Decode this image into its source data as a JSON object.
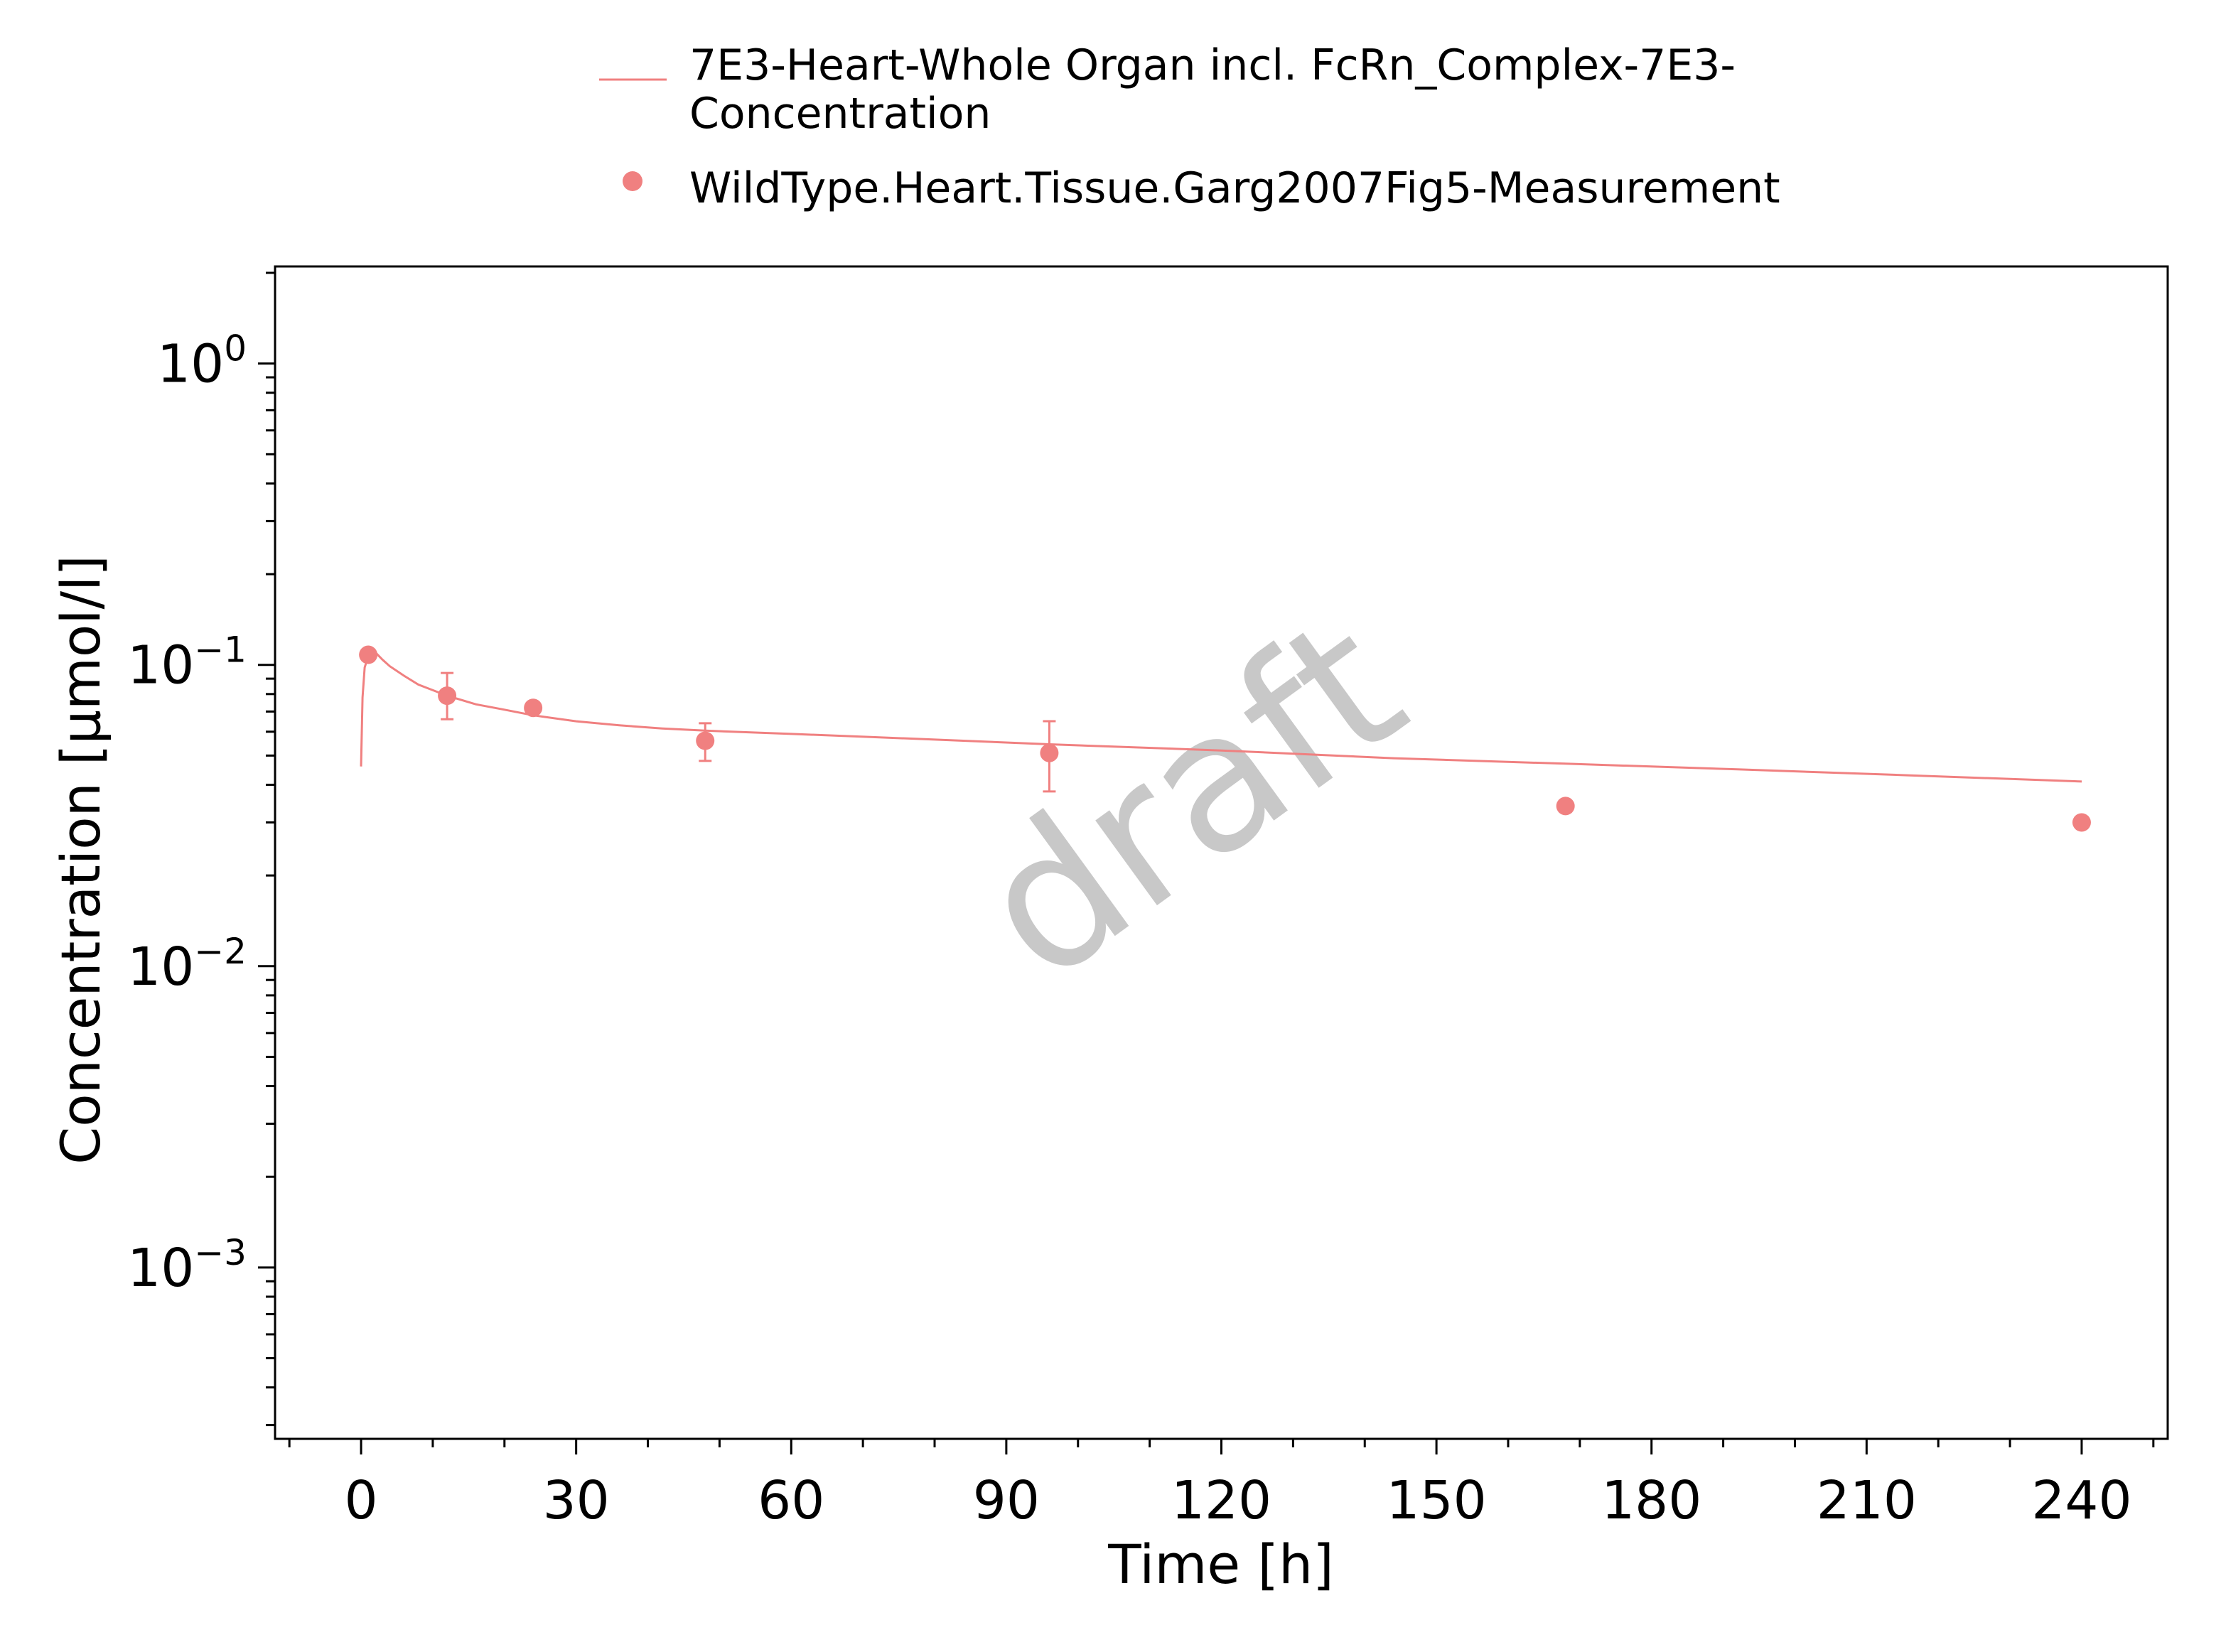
{
  "chart_data": {
    "type": "line",
    "xlabel": "Time [h]",
    "ylabel": "Concentration [µmol/l]",
    "xlim": [
      -12,
      252
    ],
    "ylim": [
      0.00027,
      2.1
    ],
    "y_scale": "log",
    "x_ticks": [
      0,
      30,
      60,
      90,
      120,
      150,
      180,
      210,
      240
    ],
    "x_tick_labels": [
      "0",
      "30",
      "60",
      "90",
      "120",
      "150",
      "180",
      "210",
      "240"
    ],
    "y_ticks": [
      {
        "value": 1,
        "base": "10",
        "exp": "0"
      },
      {
        "value": 0.1,
        "base": "10",
        "exp": "−1"
      },
      {
        "value": 0.01,
        "base": "10",
        "exp": "−2"
      },
      {
        "value": 0.001,
        "base": "10",
        "exp": "−3"
      }
    ],
    "grid": false,
    "legend_position": "top-center, outside plot",
    "watermark": "draft",
    "series": [
      {
        "name_lines": [
          "7E3-Heart-Whole Organ incl. FcRn_Complex-7E3-",
          "Concentration"
        ],
        "kind": "line",
        "color": "#f08080",
        "x": [
          0,
          0.2,
          0.5,
          1,
          1.5,
          2,
          3,
          4,
          6,
          8,
          12,
          16,
          20,
          24,
          30,
          36,
          42,
          48,
          60,
          72,
          84,
          96,
          120,
          144,
          168,
          192,
          216,
          240
        ],
        "y": [
          0.046,
          0.078,
          0.098,
          0.107,
          0.111,
          0.11,
          0.104,
          0.099,
          0.092,
          0.086,
          0.079,
          0.074,
          0.071,
          0.068,
          0.065,
          0.063,
          0.0615,
          0.0605,
          0.059,
          0.0575,
          0.056,
          0.0545,
          0.052,
          0.049,
          0.047,
          0.045,
          0.043,
          0.041
        ]
      },
      {
        "name": "WildType.Heart.Tissue.Garg2007Fig5-Measurement",
        "kind": "scatter",
        "color": "#f08080",
        "points": [
          {
            "x": 1,
            "y": 0.108
          },
          {
            "x": 12,
            "y": 0.079,
            "ylow": 0.066,
            "yhigh": 0.094
          },
          {
            "x": 24,
            "y": 0.072
          },
          {
            "x": 48,
            "y": 0.056,
            "ylow": 0.048,
            "yhigh": 0.064
          },
          {
            "x": 96,
            "y": 0.051,
            "ylow": 0.038,
            "yhigh": 0.065
          },
          {
            "x": 168,
            "y": 0.034
          },
          {
            "x": 240,
            "y": 0.03
          }
        ]
      }
    ]
  }
}
